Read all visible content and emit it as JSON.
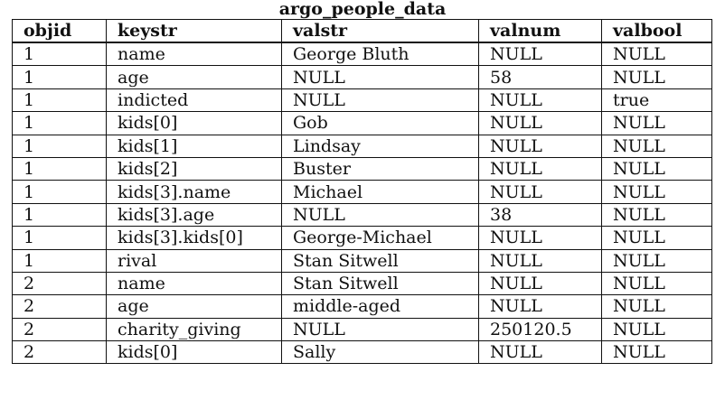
{
  "table": {
    "title": "argo_people_data",
    "columns": [
      "objid",
      "keystr",
      "valstr",
      "valnum",
      "valbool"
    ],
    "rows": [
      [
        "1",
        "name",
        "George Bluth",
        "NULL",
        "NULL"
      ],
      [
        "1",
        "age",
        "NULL",
        "58",
        "NULL"
      ],
      [
        "1",
        "indicted",
        "NULL",
        "NULL",
        "true"
      ],
      [
        "1",
        "kids[0]",
        "Gob",
        "NULL",
        "NULL"
      ],
      [
        "1",
        "kids[1]",
        "Lindsay",
        "NULL",
        "NULL"
      ],
      [
        "1",
        "kids[2]",
        "Buster",
        "NULL",
        "NULL"
      ],
      [
        "1",
        "kids[3].name",
        "Michael",
        "NULL",
        "NULL"
      ],
      [
        "1",
        "kids[3].age",
        "NULL",
        "38",
        "NULL"
      ],
      [
        "1",
        "kids[3].kids[0]",
        "George-Michael",
        "NULL",
        "NULL"
      ],
      [
        "1",
        "rival",
        "Stan Sitwell",
        "NULL",
        "NULL"
      ],
      [
        "2",
        "name",
        "Stan Sitwell",
        "NULL",
        "NULL"
      ],
      [
        "2",
        "age",
        "middle-aged",
        "NULL",
        "NULL"
      ],
      [
        "2",
        "charity_giving",
        "NULL",
        "250120.5",
        "NULL"
      ],
      [
        "2",
        "kids[0]",
        "Sally",
        "NULL",
        "NULL"
      ]
    ]
  }
}
